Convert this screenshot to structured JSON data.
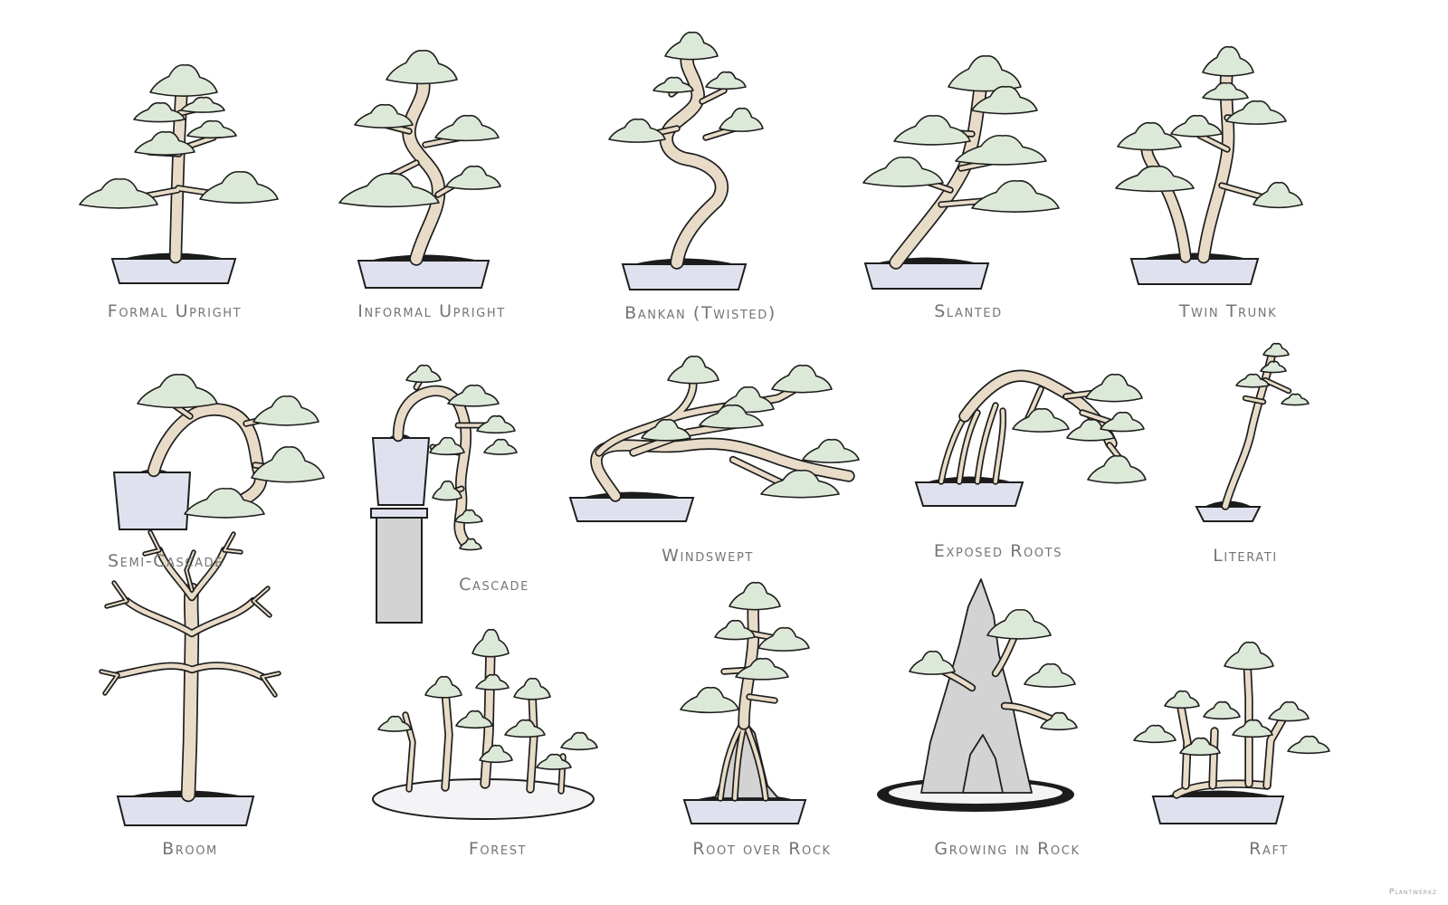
{
  "styles": [
    {
      "id": "formal-upright",
      "label": "Formal Upright"
    },
    {
      "id": "informal-upright",
      "label": "Informal Upright"
    },
    {
      "id": "bankan",
      "label": "Bankan (Twisted)"
    },
    {
      "id": "slanted",
      "label": "Slanted"
    },
    {
      "id": "twin-trunk",
      "label": "Twin Trunk"
    },
    {
      "id": "semi-cascade",
      "label": "Semi-Cascade"
    },
    {
      "id": "cascade",
      "label": "Cascade"
    },
    {
      "id": "windswept",
      "label": "Windswept"
    },
    {
      "id": "exposed-roots",
      "label": "Exposed Roots"
    },
    {
      "id": "literati",
      "label": "Literati"
    },
    {
      "id": "broom",
      "label": "Broom"
    },
    {
      "id": "forest",
      "label": "Forest"
    },
    {
      "id": "root-over-rock",
      "label": "Root over Rock"
    },
    {
      "id": "growing-in-rock",
      "label": "Growing in Rock"
    },
    {
      "id": "raft",
      "label": "Raft"
    }
  ],
  "credit": "Plantwerkz",
  "colors": {
    "foliage": "#dde9d8",
    "trunk": "#e8dcc8",
    "pot": "#dfe2ee",
    "rock": "#d3d3d3",
    "outline": "#1e1e1e",
    "caption": "#757575"
  }
}
